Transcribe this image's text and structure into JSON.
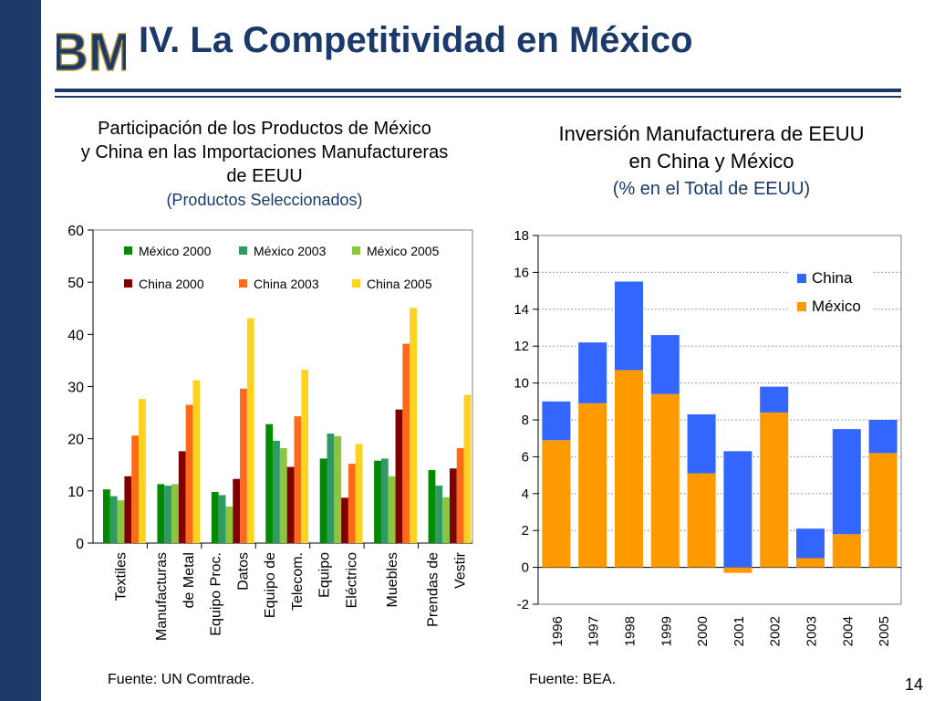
{
  "slide": {
    "title": "IV. La Competitividad en México",
    "page_number": "14",
    "logo_letters": "BM",
    "colors": {
      "navy": "#1b3a6a"
    }
  },
  "chart_data": [
    {
      "type": "bar",
      "title_lines": [
        "Participación de los Productos de México",
        "y China en las Importaciones Manufactureras",
        "de EEUU"
      ],
      "subtitle": "(Productos Seleccionados)",
      "source": "Fuente: UN Comtrade.",
      "categories": [
        [
          "Textiles"
        ],
        [
          "Manufacturas",
          "de Metal"
        ],
        [
          "Equipo Proc.",
          "Datos"
        ],
        [
          "Equipo de",
          "Telecom."
        ],
        [
          "Equipo",
          "Eléctrico"
        ],
        [
          "Muebles"
        ],
        [
          "Prendas de",
          "Vestir"
        ]
      ],
      "ylim": [
        0,
        60
      ],
      "yticks": [
        0,
        10,
        20,
        30,
        40,
        50,
        60
      ],
      "legend_position": "top",
      "series": [
        {
          "name": "México 2000",
          "color": "#008a00",
          "values": [
            10.3,
            11.3,
            9.8,
            22.8,
            16.2,
            15.8,
            14.0
          ]
        },
        {
          "name": "México 2003",
          "color": "#2f9a66",
          "values": [
            9.0,
            11.0,
            9.2,
            19.6,
            21.0,
            16.2,
            11.0
          ]
        },
        {
          "name": "México 2005",
          "color": "#8cc63f",
          "values": [
            8.2,
            11.3,
            7.0,
            18.2,
            20.5,
            12.8,
            8.8
          ]
        },
        {
          "name": "China 2000",
          "color": "#800000",
          "values": [
            12.8,
            17.6,
            12.3,
            14.6,
            8.7,
            25.6,
            14.3
          ]
        },
        {
          "name": "China 2003",
          "color": "#ff6a1a",
          "values": [
            20.6,
            26.5,
            29.6,
            24.3,
            15.2,
            38.2,
            18.2
          ]
        },
        {
          "name": "China 2005",
          "color": "#ffd21f",
          "values": [
            27.6,
            31.2,
            43.1,
            33.2,
            19.0,
            45.1,
            28.4
          ]
        }
      ]
    },
    {
      "type": "bar",
      "stacked": true,
      "title_lines": [
        "Inversión Manufacturera de EEUU",
        "en China y México"
      ],
      "subtitle": "(% en el Total de EEUU)",
      "source": "Fuente: BEA.",
      "categories": [
        "1996",
        "1997",
        "1998",
        "1999",
        "2000",
        "2001",
        "2002",
        "2003",
        "2004",
        "2005"
      ],
      "ylim": [
        -2,
        18
      ],
      "yticks": [
        -2,
        0,
        2,
        4,
        6,
        8,
        10,
        12,
        14,
        16,
        18
      ],
      "legend_position": "top-right",
      "series": [
        {
          "name": "China",
          "color": "#3366ff",
          "values": [
            2.1,
            3.3,
            4.8,
            3.2,
            3.2,
            6.3,
            1.4,
            1.6,
            5.7,
            1.8
          ]
        },
        {
          "name": "México",
          "color": "#ff9900",
          "values": [
            6.9,
            8.9,
            10.7,
            9.4,
            5.1,
            -0.3,
            8.4,
            0.5,
            1.8,
            6.2
          ]
        }
      ]
    }
  ],
  "legend_left_rows": [
    [
      "México 2000",
      "México 2003",
      "México 2005"
    ],
    [
      "China 2000",
      "China 2003",
      "China 2005"
    ]
  ]
}
